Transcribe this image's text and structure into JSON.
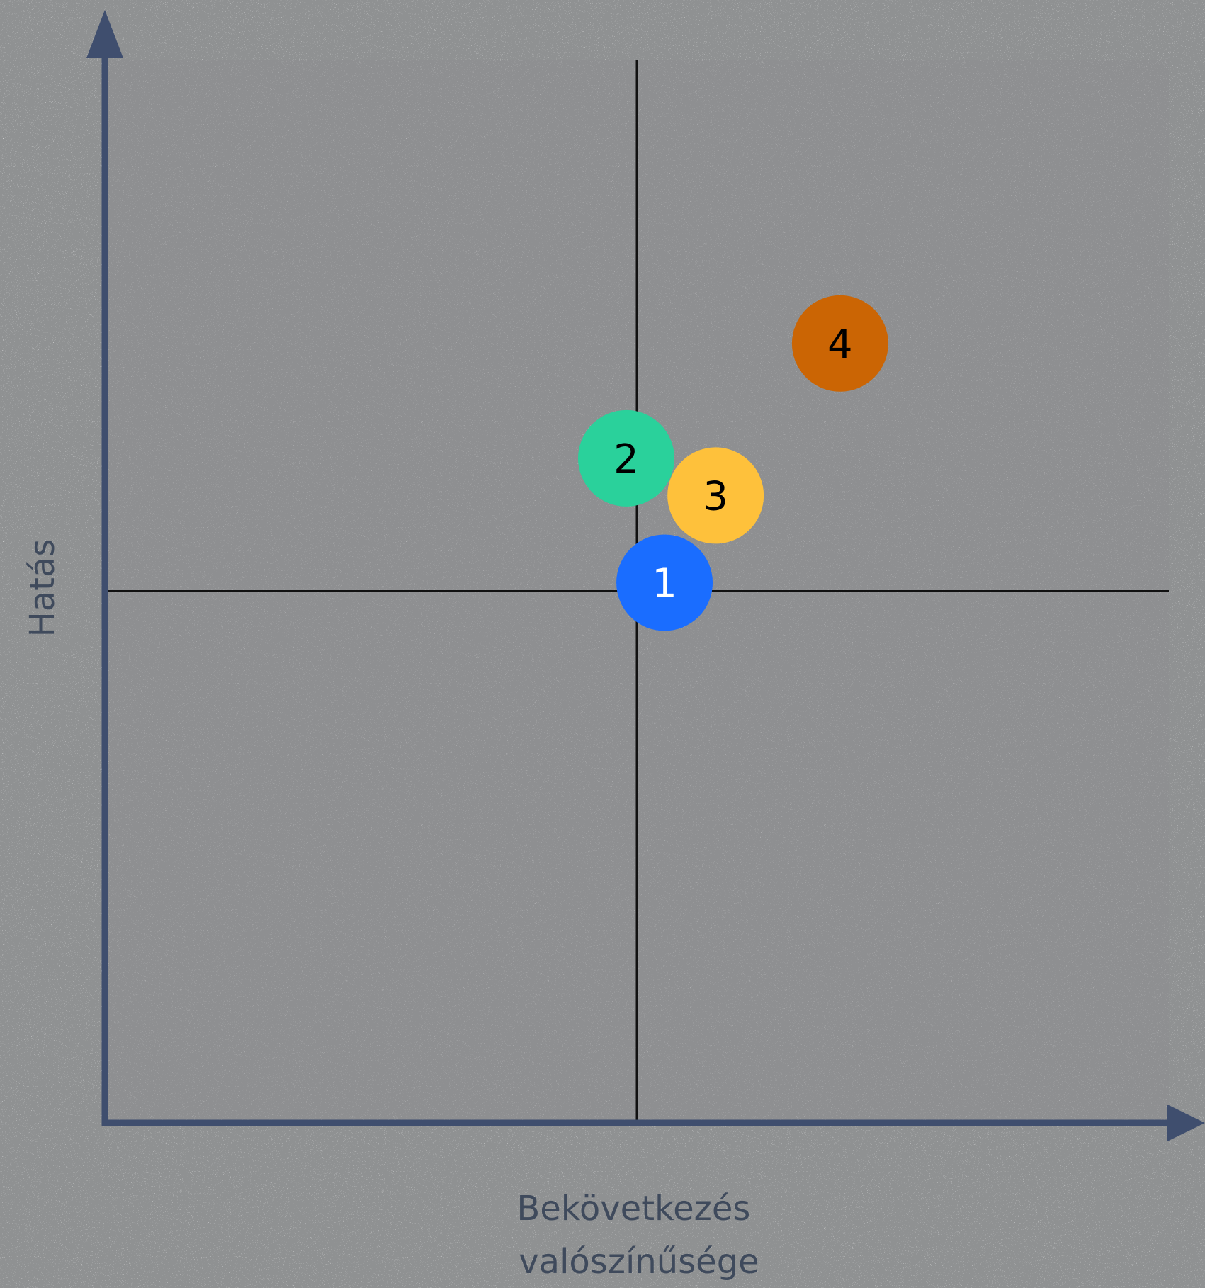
{
  "chart_data": {
    "type": "scatter",
    "title": "",
    "xlabel_lines": [
      "Bekövetkezés",
      "valószínűsége"
    ],
    "ylabel": "Hatás",
    "xlim": [
      0,
      10
    ],
    "ylim": [
      0,
      10
    ],
    "quadrant_divider": {
      "x": 5,
      "y": 5
    },
    "grid": false,
    "points": [
      {
        "label": "1",
        "x": 5.26,
        "y": 5.08,
        "color": "#1a6dff",
        "text_color": "#ffffff"
      },
      {
        "label": "2",
        "x": 4.9,
        "y": 6.25,
        "color": "#2ad19b",
        "text_color": "#000000"
      },
      {
        "label": "3",
        "x": 5.74,
        "y": 5.9,
        "color": "#fec13b",
        "text_color": "#000000"
      },
      {
        "label": "4",
        "x": 6.91,
        "y": 7.33,
        "color": "#cb6504",
        "text_color": "#000000"
      }
    ]
  },
  "colors": {
    "background": "#8f9192",
    "plot_area": "#8b8d8e",
    "axis": "#3f4e6e",
    "divider": "#111111"
  }
}
